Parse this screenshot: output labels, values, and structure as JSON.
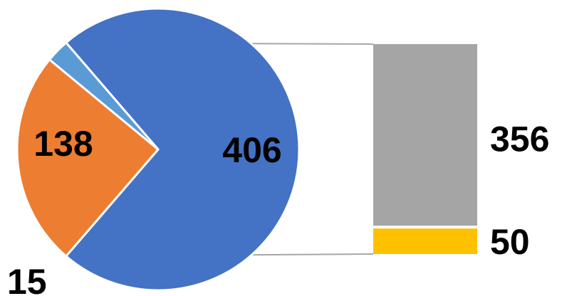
{
  "chart_data": {
    "type": "bar-of-pie",
    "pie": {
      "slices": [
        {
          "label": "406",
          "value": 406,
          "color": "#4472C4"
        },
        {
          "label": "138",
          "value": 138,
          "color": "#ED7D31"
        },
        {
          "label": "15",
          "value": 15,
          "color": "#5B9BD5"
        }
      ]
    },
    "bar": {
      "source_slice": "406",
      "segments": [
        {
          "label": "356",
          "value": 356,
          "color": "#A5A5A5"
        },
        {
          "label": "50",
          "value": 50,
          "color": "#FFC000"
        }
      ]
    },
    "legend": "none",
    "grid": false,
    "title": "",
    "connector_color": "#A6A6A6"
  }
}
